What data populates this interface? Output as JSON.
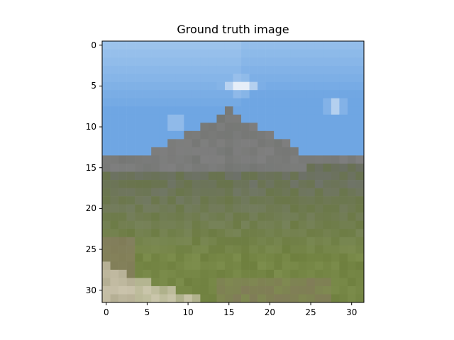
{
  "figure": {
    "title": "Ground truth image",
    "x_ticks": [
      "0",
      "5",
      "10",
      "15",
      "20",
      "25",
      "30"
    ],
    "y_ticks": [
      "0",
      "5",
      "10",
      "15",
      "20",
      "25",
      "30"
    ]
  },
  "colors": {
    "sky": "#6fa6e3",
    "sky_light": "#9cc3ec",
    "cloud": "#e6eef8",
    "mountain": "#7f7f7f",
    "mountain_dark": "#6e716c",
    "grass": "#7c8d4c",
    "grass_dark": "#647534",
    "path": "#d8d0bc",
    "rock": "#8b7b66"
  }
}
